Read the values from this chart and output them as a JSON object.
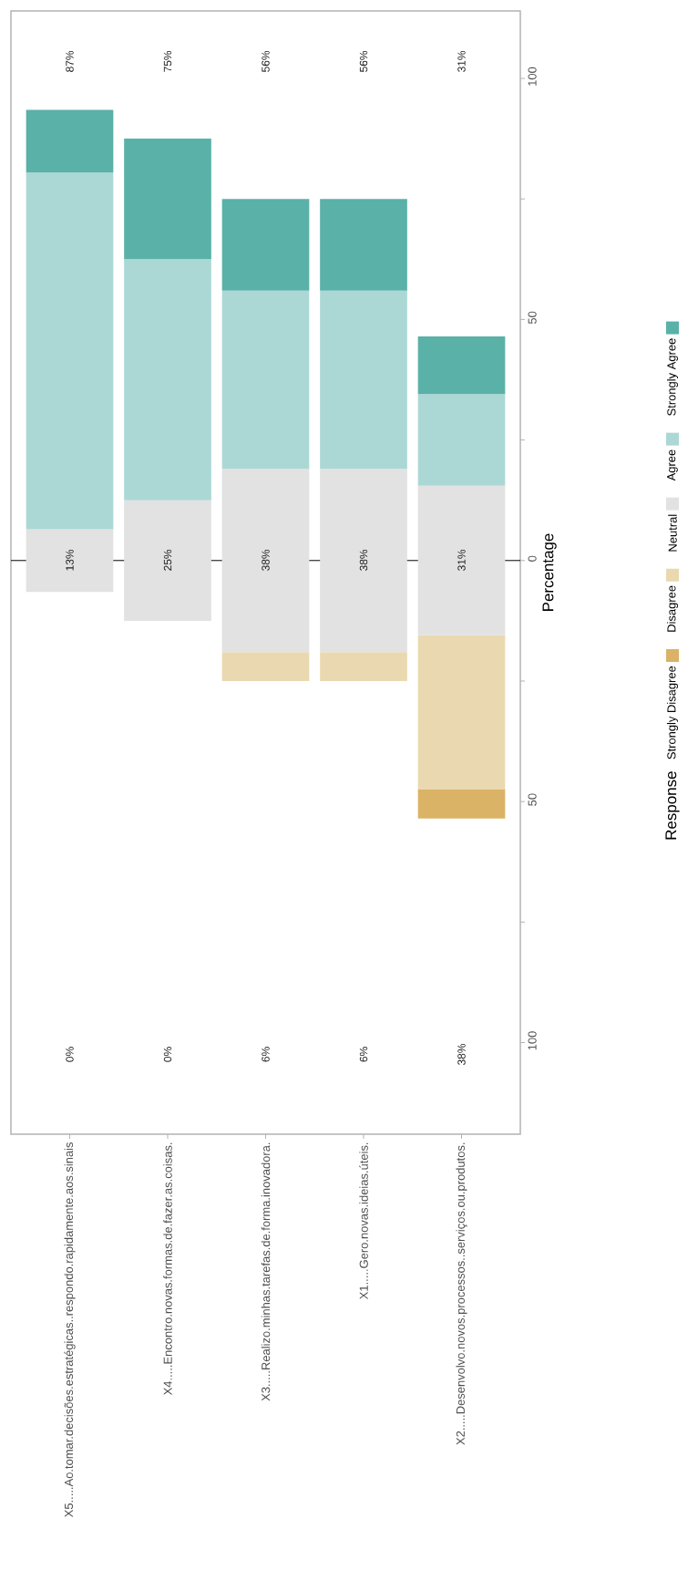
{
  "chart_data": {
    "type": "bar",
    "categories": [
      "X5.....Ao.tomar.decisões.estratégicas..respondo.rapidamente.aos.sinais",
      "X4.....Encontro.novas.formas.de.fazer.as.coisas.",
      "X3.....Realizo.minhas.tarefas.de.forma.inovadora.",
      "X1.....Gero.novas.ideias.úteis.",
      "X2.....Desenvolvo.novos.processos..serviços.ou.produtos."
    ],
    "series": [
      {
        "name": "Strongly Disagree",
        "color": "#dbb366",
        "values": [
          0,
          0,
          0,
          0,
          6
        ],
        "base": [
          null,
          null,
          null,
          null,
          -53.5
        ]
      },
      {
        "name": "Disagree",
        "color": "#ead9b0",
        "values": [
          0,
          0,
          6,
          6,
          32
        ],
        "base": [
          null,
          null,
          -25,
          -25,
          -47.5
        ]
      },
      {
        "name": "Neutral",
        "color": "#e2e2e2",
        "values": [
          13,
          25,
          38,
          38,
          31
        ],
        "base": [
          -6.5,
          -12.5,
          -19,
          -19,
          -15.5
        ]
      },
      {
        "name": "Agree",
        "color": "#abd8d5",
        "values": [
          74,
          50,
          37,
          37,
          19
        ],
        "base": [
          6.5,
          12.5,
          19,
          19,
          15.5
        ]
      },
      {
        "name": "Strongly Agree",
        "color": "#5ab1a8",
        "values": [
          13,
          25,
          19,
          19,
          12
        ],
        "base": [
          80.5,
          62.5,
          56,
          56,
          34.5
        ]
      }
    ],
    "ylabel": "Percentage",
    "legend_title": "Response",
    "legend": "right",
    "ylim": [
      -119,
      114
    ],
    "yticks": [
      {
        "value": -100,
        "label": "100"
      },
      {
        "value": -75,
        "label": null
      },
      {
        "value": -50,
        "label": "50"
      },
      {
        "value": -25,
        "label": null
      },
      0,
      {
        "value": 25,
        "label": null
      },
      {
        "value": 50,
        "label": "50"
      },
      {
        "value": 75,
        "label": null
      },
      {
        "value": 100,
        "label": "100"
      }
    ],
    "ref_lines": [
      {
        "axis": "y",
        "value": 0,
        "color": "#000000"
      }
    ],
    "annotations": [
      "0%",
      "13%",
      "87%",
      "0%",
      "25%",
      "75%",
      "6%",
      "38%",
      "56%",
      "6%",
      "38%",
      "56%",
      "38%",
      "31%",
      "31%"
    ]
  }
}
